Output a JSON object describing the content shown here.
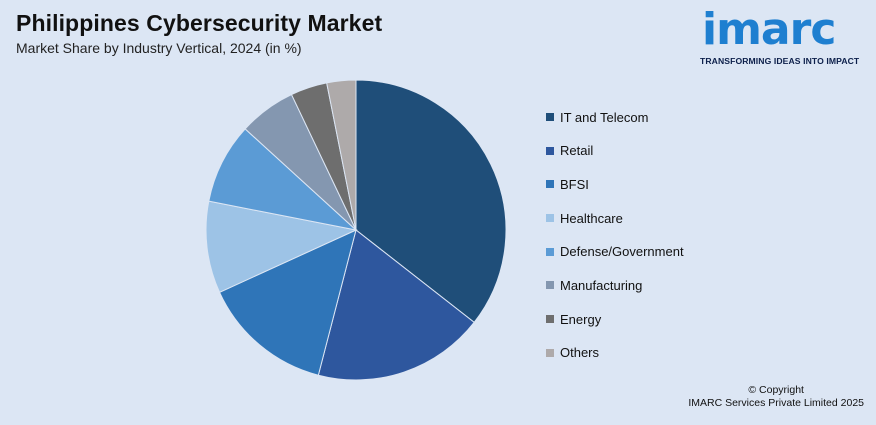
{
  "header": {
    "title": "Philippines Cybersecurity Market",
    "subtitle": "Market Share by Industry Vertical, 2024 (in %)"
  },
  "logo": {
    "wordmark": "imarc",
    "tagline": "TRANSFORMING IDEAS INTO IMPACT",
    "color": "#1e7fd0"
  },
  "chart_data": {
    "type": "pie",
    "title": "Philippines Cybersecurity Market",
    "subtitle": "Market Share by Industry Vertical, 2024 (in %)",
    "legend_position": "right",
    "categories": [
      "IT and Telecom",
      "Retail",
      "BFSI",
      "Healthcare",
      "Defense/Government",
      "Manufacturing",
      "Energy",
      "Others"
    ],
    "values": [
      35.2,
      18.3,
      14.0,
      9.8,
      8.6,
      6.1,
      3.9,
      3.1
    ],
    "colors": [
      "#1f4e79",
      "#2e579e",
      "#2f75b8",
      "#9dc3e6",
      "#5b9bd5",
      "#8497b0",
      "#6e6e6e",
      "#aeaaaa"
    ]
  },
  "footer": {
    "copyright_line1": "© Copyright",
    "copyright_line2": "IMARC Services Private Limited 2025"
  }
}
